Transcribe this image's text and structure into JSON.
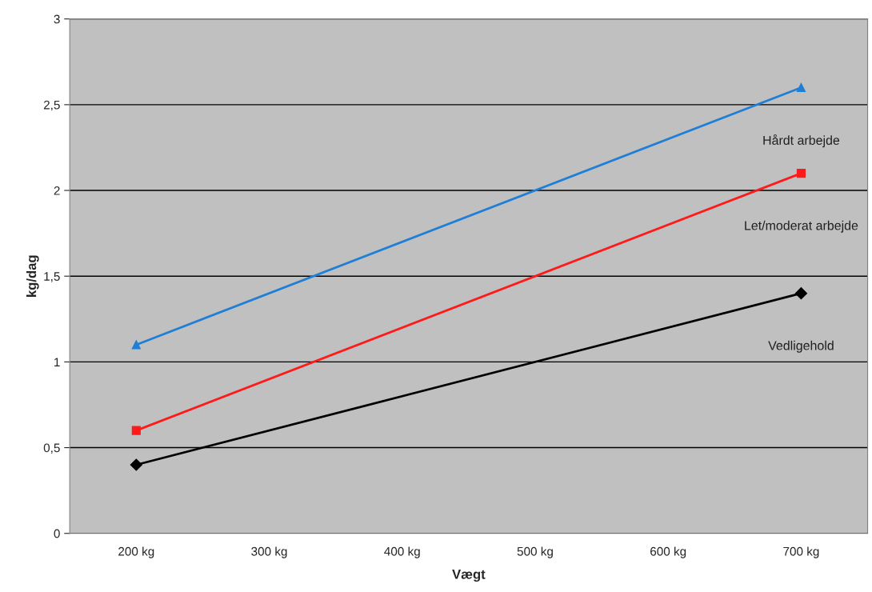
{
  "chart_data": {
    "type": "line",
    "xlabel": "Vægt",
    "ylabel": "kg/dag",
    "categories": [
      "200 kg",
      "300 kg",
      "400 kg",
      "500 kg",
      "600 kg",
      "700 kg"
    ],
    "series": [
      {
        "name": "Hårdt arbejde",
        "color": "#1f7fd6",
        "marker": "triangle",
        "values": [
          1.1,
          null,
          null,
          null,
          null,
          2.6
        ]
      },
      {
        "name": "Let/moderat arbejde",
        "color": "#ff1a1a",
        "marker": "square",
        "values": [
          0.6,
          null,
          null,
          null,
          null,
          2.1
        ]
      },
      {
        "name": "Vedligehold",
        "color": "#000000",
        "marker": "diamond",
        "values": [
          0.4,
          null,
          null,
          null,
          null,
          1.4
        ]
      }
    ],
    "ylim": [
      0,
      3
    ],
    "yticks": [
      0,
      {
        "value": 0.5,
        "label": "0,5"
      },
      1,
      {
        "value": 1.5,
        "label": "1,5"
      },
      2,
      {
        "value": 2.5,
        "label": "2,5"
      },
      3
    ],
    "grid": "y",
    "legend": false,
    "line_style": "solid"
  }
}
